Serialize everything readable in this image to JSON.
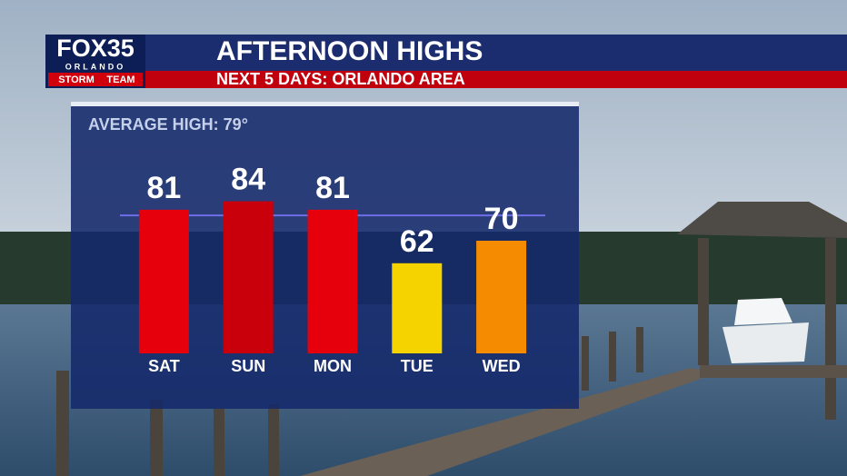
{
  "brand": {
    "name": "FOX35",
    "city": "ORLANDO",
    "team_left": "STORM",
    "team_right": "TEAM"
  },
  "chart_data": {
    "type": "bar",
    "title": "AFTERNOON HIGHS",
    "subtitle": "NEXT 5 DAYS: ORLANDO AREA",
    "categories": [
      "SAT",
      "SUN",
      "MON",
      "TUE",
      "WED"
    ],
    "values": [
      81,
      84,
      81,
      62,
      70
    ],
    "colors": [
      "#e5000b",
      "#c9000c",
      "#e5000b",
      "#f5d300",
      "#f58b00"
    ],
    "ylim": [
      30,
      90
    ],
    "reference_line": {
      "value": 79,
      "label": "AVERAGE HIGH: 79°",
      "color": "#6f6fe8"
    }
  }
}
